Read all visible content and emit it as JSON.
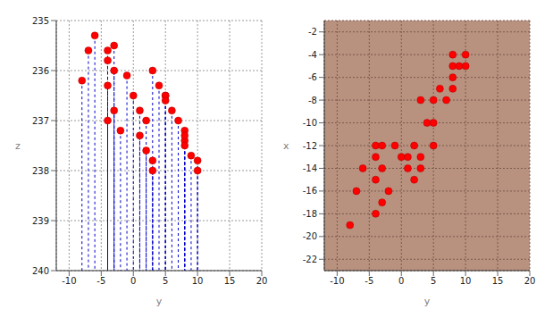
{
  "chart_data": {
    "type": "scatter3d",
    "x_label": "x",
    "y_label": "y",
    "z_label": "z",
    "xlim": [
      -23,
      -1
    ],
    "xticks": [
      -22,
      -20,
      -18,
      -16,
      -14,
      -12,
      -10,
      -8,
      -6,
      -4,
      -2
    ],
    "ylim": [
      -12,
      20
    ],
    "yticks": [
      -10,
      -5,
      0,
      5,
      10,
      15,
      20
    ],
    "zlim": [
      235,
      240
    ],
    "zticks": [
      235,
      236,
      237,
      238,
      239,
      240
    ],
    "color": "#ff0000",
    "marker": "circle",
    "line_style": "dashed",
    "grid": true,
    "points": {
      "x": [
        -19,
        -16,
        -14,
        -18,
        -17,
        -16,
        -15,
        -14,
        -13,
        -12,
        -12,
        -12,
        -13,
        -13,
        -14,
        -15,
        -14,
        -12,
        -13,
        -12,
        -10,
        -10,
        -8,
        -8,
        -8,
        -7,
        -7,
        -6,
        -5,
        -5,
        -4,
        -5,
        -4
      ],
      "y": [
        -8,
        -7,
        -6,
        -4,
        -3,
        -2,
        -4,
        -3,
        -4,
        -4,
        -3,
        -1,
        0,
        1,
        1,
        2,
        3,
        2,
        3,
        5,
        4,
        5,
        3,
        5,
        7,
        6,
        8,
        8,
        8,
        9,
        8,
        10,
        10
      ],
      "z": [
        236.2,
        235.6,
        235.3,
        237.0,
        236.8,
        237.2,
        236.3,
        236.0,
        235.8,
        235.6,
        235.5,
        236.1,
        236.5,
        236.8,
        237.3,
        237.6,
        237.8,
        237.0,
        238.0,
        236.5,
        236.3,
        236.5,
        236.0,
        236.6,
        237.0,
        236.8,
        237.2,
        237.4,
        237.5,
        237.7,
        237.3,
        238.0,
        237.8
      ]
    }
  }
}
